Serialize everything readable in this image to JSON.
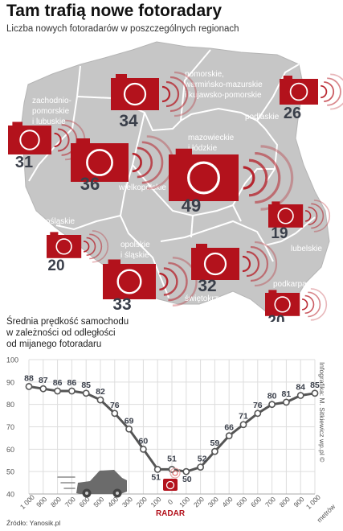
{
  "header": {
    "title": "Tam trafią nowe fotoradary",
    "subtitle": "Liczba nowych fotoradarów w poszczególnych regionach"
  },
  "colors": {
    "accent": "#b3121c",
    "map_fill": "#c6c6c6",
    "map_border": "#ffffff",
    "line": "#555555",
    "grid": "#dddddd"
  },
  "regions": [
    {
      "key": "zachodniopomorskie",
      "label_lines": [
        "zachodnio-",
        "pomorskie",
        "i lubuskie"
      ],
      "count": 31
    },
    {
      "key": "wielkopolskie",
      "label_lines": [
        "wielkopolskie"
      ],
      "count": 36
    },
    {
      "key": "pomorskie",
      "label_lines": [
        "pomorskie,",
        "warmińsko-mazurskie",
        "i kujawsko-pomorskie"
      ],
      "count": 34
    },
    {
      "key": "podlaskie",
      "label_lines": [
        "podlaskie"
      ],
      "count": 26
    },
    {
      "key": "mazowieckie",
      "label_lines": [
        "mazowieckie",
        "i łódzkie"
      ],
      "count": 49
    },
    {
      "key": "lubelskie",
      "label_lines": [
        "lubelskie"
      ],
      "count": 19
    },
    {
      "key": "dolnoslaskie",
      "label_lines": [
        "dolnośląskie"
      ],
      "count": 20
    },
    {
      "key": "opolskie",
      "label_lines": [
        "opolskie",
        "i śląskie"
      ],
      "count": 33
    },
    {
      "key": "swietokrzyskie",
      "label_lines": [
        "świętokrzyskie",
        "i małopolskie"
      ],
      "count": 32
    },
    {
      "key": "podkarpackie",
      "label_lines": [
        "podkarpackie"
      ],
      "count": 20
    }
  ],
  "chart_heading": [
    "Średnia prędkość samochodu",
    "w zależności od odległości",
    "od mijanego fotoradaru"
  ],
  "chart_data": {
    "type": "line",
    "title": "Średnia prędkość samochodu w zależności od odległości od mijanego fotoradaru",
    "xlabel": "metrów",
    "center_label": "RADAR",
    "ylim": [
      40,
      100
    ],
    "y_ticks": [
      40,
      50,
      60,
      70,
      80,
      90,
      100
    ],
    "x_tick_labels": [
      "1 000",
      "900",
      "800",
      "700",
      "600",
      "500",
      "400",
      "300",
      "200",
      "100",
      "0",
      "100",
      "200",
      "300",
      "400",
      "500",
      "600",
      "700",
      "800",
      "900",
      "1 000"
    ],
    "x": [
      -1000,
      -900,
      -800,
      -700,
      -600,
      -500,
      -400,
      -300,
      -200,
      -100,
      0,
      100,
      200,
      300,
      400,
      500,
      600,
      700,
      800,
      900,
      1000
    ],
    "values": [
      88,
      87,
      86,
      86,
      85,
      82,
      76,
      69,
      60,
      51,
      51,
      50,
      52,
      59,
      66,
      71,
      76,
      80,
      81,
      84,
      85
    ],
    "grid": true
  },
  "footer": {
    "credit": "Infografika: M. Sitkiewicz wp.pl ©",
    "source": "Źródło: Yanosik.pl"
  }
}
